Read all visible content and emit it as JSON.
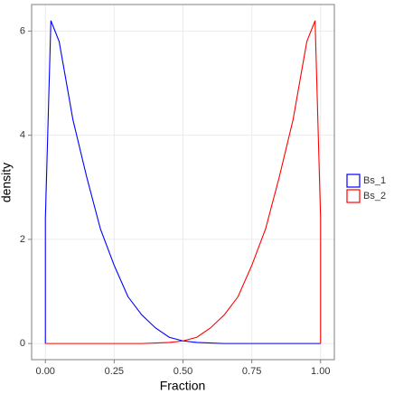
{
  "chart_data": {
    "type": "line",
    "x_label": "Fraction",
    "y_label": "density",
    "x": [
      0,
      0,
      0.02,
      0.05,
      0.1,
      0.15,
      0.2,
      0.25,
      0.3,
      0.35,
      0.4,
      0.45,
      0.5,
      0.55,
      0.6,
      0.65,
      0.7,
      0.75,
      0.8,
      0.85,
      0.9,
      0.95,
      0.98,
      1,
      1
    ],
    "series": [
      {
        "name": "Bs_1",
        "color": "#0000ff",
        "values": [
          0,
          2.4,
          6.2,
          5.8,
          4.3,
          3.2,
          2.2,
          1.5,
          0.9,
          0.55,
          0.3,
          0.12,
          0.05,
          0.02,
          0.01,
          0,
          0,
          0,
          0,
          0,
          0,
          0,
          0,
          0,
          0
        ]
      },
      {
        "name": "Bs_2",
        "color": "#ff0000",
        "values": [
          0,
          0,
          0,
          0,
          0,
          0,
          0,
          0,
          0,
          0,
          0.01,
          0.02,
          0.05,
          0.12,
          0.3,
          0.55,
          0.9,
          1.5,
          2.2,
          3.2,
          4.3,
          5.8,
          6.2,
          2.4,
          0
        ]
      }
    ],
    "xlim": [
      -0.05,
      1.05
    ],
    "ylim": [
      -0.31,
      6.51
    ],
    "xticks": [
      {
        "value": 0,
        "label": "0.00"
      },
      {
        "value": 0.25,
        "label": "0.25"
      },
      {
        "value": 0.5,
        "label": "0.50"
      },
      {
        "value": 0.75,
        "label": "0.75"
      },
      {
        "value": 1,
        "label": "1.00"
      }
    ],
    "yticks": [
      0,
      2,
      4,
      6
    ],
    "grid": true,
    "legend": "right"
  }
}
